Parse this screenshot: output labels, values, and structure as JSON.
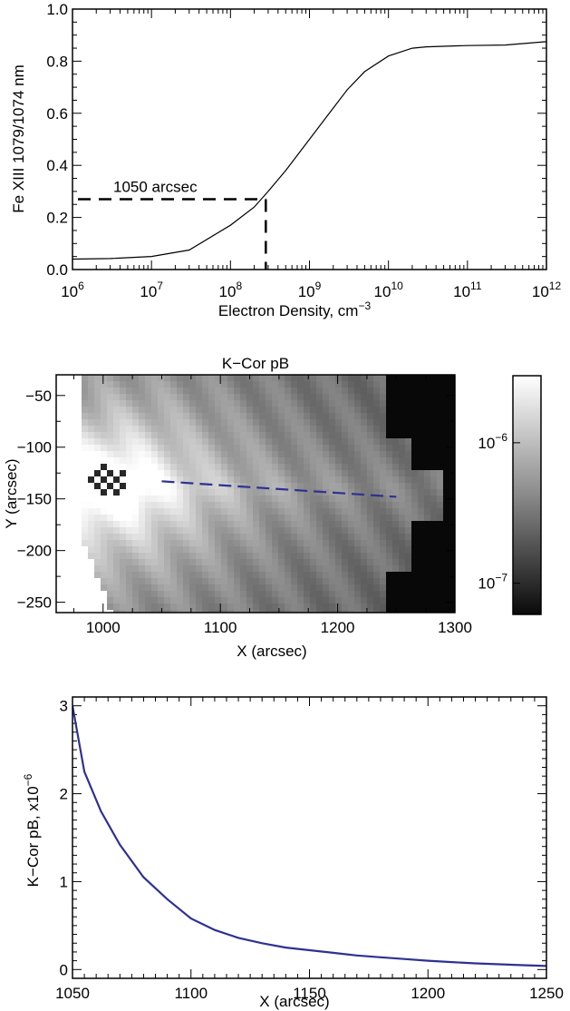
{
  "chart_data": [
    {
      "type": "line",
      "ylabel": "Fe XIII 1079/1074 nm",
      "xlabel": "Electron Density, cm",
      "xlabel_superscript": "−3",
      "x_scale": "log",
      "xlim": [
        1000000,
        1000000000000
      ],
      "ylim": [
        0.0,
        1.0
      ],
      "x_tick_base": "10",
      "x_ticks": [
        {
          "value": 1000000,
          "exp": "6"
        },
        {
          "value": 10000000,
          "exp": "7"
        },
        {
          "value": 100000000,
          "exp": "8"
        },
        {
          "value": 1000000000,
          "exp": "9"
        },
        {
          "value": 10000000000,
          "exp": "10"
        },
        {
          "value": 100000000000,
          "exp": "11"
        },
        {
          "value": 1000000000000,
          "exp": "12"
        }
      ],
      "y_ticks": [
        "0.0",
        "0.2",
        "0.4",
        "0.6",
        "0.8",
        "1.0"
      ],
      "series": [
        {
          "color": "#000000",
          "x": [
            1000000,
            3000000,
            10000000,
            30000000,
            100000000,
            200000000,
            300000000,
            500000000,
            1000000000,
            2000000000,
            3000000000,
            5000000000,
            10000000000,
            20000000000,
            30000000000,
            100000000000,
            300000000000,
            1000000000000
          ],
          "y": [
            0.04,
            0.042,
            0.05,
            0.075,
            0.17,
            0.24,
            0.3,
            0.38,
            0.5,
            0.62,
            0.69,
            0.76,
            0.82,
            0.85,
            0.855,
            0.86,
            0.862,
            0.875
          ]
        }
      ],
      "annotation": {
        "text": "1050 arcsec",
        "x": 280000000,
        "y": 0.27,
        "color": "#000000"
      }
    },
    {
      "type": "heatmap",
      "title": "K−Cor pB",
      "xlabel": "X (arcsec)",
      "ylabel": "Y (arcsec)",
      "xlim": [
        960,
        1300
      ],
      "ylim": [
        -260,
        -30
      ],
      "x_ticks": [
        "1000",
        "1100",
        "1200",
        "1300"
      ],
      "y_ticks": [
        "−50",
        "−100",
        "−150",
        "−200",
        "−250"
      ],
      "colorbar": {
        "scale": "log",
        "range": [
          6e-08,
          3e-06
        ],
        "ticks": [
          {
            "value": 1e-06,
            "base": "10",
            "exp": "−6"
          },
          {
            "value": 1e-07,
            "base": "10",
            "exp": "−7"
          }
        ]
      },
      "cut_line": {
        "color": "#2e3192",
        "x": [
          1050,
          1250
        ],
        "y": [
          -133,
          -148
        ]
      }
    },
    {
      "type": "line",
      "xlabel": "X (arcsec)",
      "ylabel": "K−Cor pB, x10",
      "ylabel_superscript": "−6",
      "xlim": [
        1050,
        1250
      ],
      "ylim": [
        -0.1,
        3.1
      ],
      "x_ticks": [
        "1050",
        "1100",
        "1150",
        "1200",
        "1250"
      ],
      "y_ticks": [
        "0",
        "1",
        "2",
        "3"
      ],
      "series": [
        {
          "color": "#2e3192",
          "x": [
            1050,
            1055,
            1062,
            1070,
            1080,
            1090,
            1100,
            1110,
            1120,
            1130,
            1140,
            1150,
            1160,
            1170,
            1180,
            1190,
            1200,
            1210,
            1220,
            1230,
            1240,
            1250
          ],
          "y": [
            3.0,
            2.25,
            1.8,
            1.42,
            1.05,
            0.8,
            0.58,
            0.45,
            0.36,
            0.3,
            0.25,
            0.22,
            0.19,
            0.16,
            0.14,
            0.12,
            0.1,
            0.085,
            0.07,
            0.06,
            0.05,
            0.04
          ]
        }
      ]
    }
  ]
}
